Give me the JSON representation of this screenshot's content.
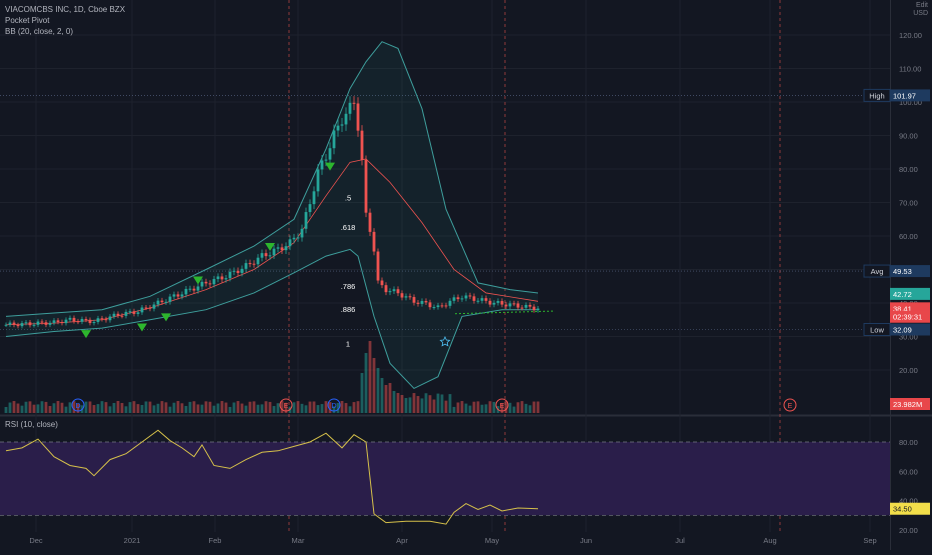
{
  "header": {
    "title": "VIACOMCBS INC, 1D, Cboe BZX",
    "indicator1": "Pocket Pivot",
    "indicator2": "BB (20, close, 2, 0)",
    "currency_top": "Edit",
    "currency": "USD"
  },
  "rsi": {
    "label": "RSI (10, close)",
    "value_tag": "34.50"
  },
  "colors": {
    "up": "#26a69a",
    "down": "#ef5350",
    "bb": "#3e9e9c",
    "ma": "#ef5350",
    "rsi_line": "#d6c14a",
    "rsi_band": "#2a1e4a",
    "pivot": "#2db62d",
    "high_tag": "#1e3a5f",
    "price_tag": "#e8474a",
    "vol_tag": "#e8474a",
    "rsi_tag": "#f2de4a"
  },
  "chart_data": [
    {
      "type": "candlestick",
      "title": "VIACOMCBS INC, 1D, Cboe BZX",
      "x_axis_labels": [
        "Dec",
        "2021",
        "Feb",
        "Mar",
        "Apr",
        "May",
        "Jun",
        "Jul",
        "Aug",
        "Sep"
      ],
      "y_axis_labels": [
        "120.00",
        "110.00",
        "100.00",
        "90.00",
        "80.00",
        "70.00",
        "60.00",
        "50.00",
        "40.00",
        "30.00",
        "20.00"
      ],
      "ylim": [
        10,
        125
      ],
      "close_series": [
        [
          0,
          33.5
        ],
        [
          6,
          33.8
        ],
        [
          12,
          34.2
        ],
        [
          16,
          35
        ],
        [
          22,
          34.5
        ],
        [
          28,
          36.5
        ],
        [
          33,
          37.5
        ],
        [
          36,
          39
        ],
        [
          40,
          41
        ],
        [
          44,
          43
        ],
        [
          50,
          46
        ],
        [
          55,
          48
        ],
        [
          60,
          51
        ],
        [
          64,
          54
        ],
        [
          68,
          56
        ],
        [
          71,
          58
        ],
        [
          74,
          62
        ],
        [
          76,
          70
        ],
        [
          78,
          79
        ],
        [
          80,
          84
        ],
        [
          82,
          90
        ],
        [
          84,
          95
        ],
        [
          86,
          98
        ],
        [
          87,
          100
        ],
        [
          88,
          93
        ],
        [
          89,
          82
        ],
        [
          90,
          66
        ],
        [
          91,
          62
        ],
        [
          92,
          56
        ],
        [
          93,
          46
        ],
        [
          95,
          44
        ],
        [
          98,
          43
        ],
        [
          102,
          40.5
        ],
        [
          105,
          39.8
        ],
        [
          108,
          38.6
        ],
        [
          111,
          40.5
        ],
        [
          114,
          42
        ],
        [
          118,
          41
        ],
        [
          122,
          40
        ],
        [
          126,
          39.5
        ],
        [
          130,
          38.8
        ],
        [
          133,
          38.41
        ]
      ],
      "bollinger": {
        "upper": [
          [
            0,
            36
          ],
          [
            12,
            37
          ],
          [
            24,
            38
          ],
          [
            36,
            42
          ],
          [
            50,
            50
          ],
          [
            62,
            57
          ],
          [
            72,
            65
          ],
          [
            80,
            86
          ],
          [
            86,
            104
          ],
          [
            90,
            112
          ],
          [
            94,
            118
          ],
          [
            98,
            116
          ],
          [
            104,
            98
          ],
          [
            110,
            68
          ],
          [
            118,
            46
          ],
          [
            126,
            44
          ],
          [
            133,
            43
          ]
        ],
        "middle": [
          [
            0,
            33.5
          ],
          [
            12,
            34
          ],
          [
            24,
            35
          ],
          [
            36,
            38.5
          ],
          [
            50,
            44
          ],
          [
            62,
            50
          ],
          [
            72,
            58
          ],
          [
            80,
            72
          ],
          [
            86,
            82
          ],
          [
            90,
            83
          ],
          [
            96,
            76
          ],
          [
            104,
            64
          ],
          [
            112,
            50
          ],
          [
            120,
            43
          ],
          [
            133,
            40.5
          ]
        ],
        "lower": [
          [
            0,
            30
          ],
          [
            12,
            31.5
          ],
          [
            24,
            32.5
          ],
          [
            36,
            35
          ],
          [
            50,
            38
          ],
          [
            62,
            43
          ],
          [
            72,
            49
          ],
          [
            80,
            54
          ],
          [
            86,
            56
          ],
          [
            88,
            54
          ],
          [
            92,
            36
          ],
          [
            96,
            22
          ],
          [
            102,
            14.5
          ],
          [
            108,
            18
          ],
          [
            114,
            36
          ],
          [
            124,
            38
          ],
          [
            133,
            38
          ]
        ]
      },
      "pocket_pivots": [
        [
          20,
          31
        ],
        [
          34,
          33
        ],
        [
          40,
          36
        ],
        [
          48,
          47
        ],
        [
          66,
          57
        ],
        [
          81,
          81
        ]
      ],
      "fib_labels": [
        {
          "label": ".5",
          "value": 70.6
        },
        {
          "label": ".618",
          "value": 61.8
        },
        {
          "label": ".786",
          "value": 44.2
        },
        {
          "label": ".886",
          "value": 37.3
        },
        {
          "label": "1",
          "value": 27.0
        }
      ],
      "price_tags": [
        {
          "label": "High",
          "value": "101.97",
          "y": 101.97
        },
        {
          "label": "Avg",
          "value": "49.53",
          "y": 49.53
        },
        {
          "label": "Low",
          "value": "32.09",
          "y": 32.09
        }
      ],
      "last_price_tags": [
        {
          "label": "42.72",
          "y": 42.72,
          "color": "#26a69a"
        },
        {
          "label": "38.41",
          "y": 38.41,
          "color": "#e8474a"
        },
        {
          "label": "02:39:31",
          "y": 35.9,
          "color": "#e8474a"
        }
      ],
      "volume_tag": "23.982M",
      "event_markers": [
        {
          "x": 18,
          "letter": "D",
          "color": "#2962ff"
        },
        {
          "x": 70,
          "letter": "E",
          "color": "#ef5350"
        },
        {
          "x": 82,
          "letter": "D",
          "color": "#2962ff"
        },
        {
          "x": 124,
          "letter": "E",
          "color": "#ef5350"
        },
        {
          "x": 196,
          "letter": "E",
          "color": "#ef5350"
        }
      ]
    },
    {
      "type": "line",
      "title": "RSI (10, close)",
      "y_axis_labels": [
        "80.00",
        "60.00",
        "40.00",
        "20.00"
      ],
      "ylim": [
        16,
        96
      ],
      "band": [
        30,
        80
      ],
      "values": [
        [
          0,
          74
        ],
        [
          4,
          76
        ],
        [
          8,
          82
        ],
        [
          12,
          70
        ],
        [
          16,
          64
        ],
        [
          20,
          62
        ],
        [
          22,
          57
        ],
        [
          26,
          68
        ],
        [
          30,
          72
        ],
        [
          34,
          80
        ],
        [
          38,
          88
        ],
        [
          41,
          81
        ],
        [
          44,
          76
        ],
        [
          47,
          70
        ],
        [
          49,
          78
        ],
        [
          52,
          64
        ],
        [
          56,
          62
        ],
        [
          60,
          68
        ],
        [
          64,
          73
        ],
        [
          68,
          74
        ],
        [
          72,
          77
        ],
        [
          76,
          80
        ],
        [
          80,
          86
        ],
        [
          84,
          76
        ],
        [
          87,
          85
        ],
        [
          90,
          80
        ],
        [
          92,
          31
        ],
        [
          95,
          25
        ],
        [
          100,
          26
        ],
        [
          106,
          26
        ],
        [
          110,
          24
        ],
        [
          112,
          32
        ],
        [
          115,
          38
        ],
        [
          118,
          34
        ],
        [
          121,
          37
        ],
        [
          124,
          33
        ],
        [
          128,
          35
        ],
        [
          133,
          34.5
        ]
      ]
    }
  ]
}
